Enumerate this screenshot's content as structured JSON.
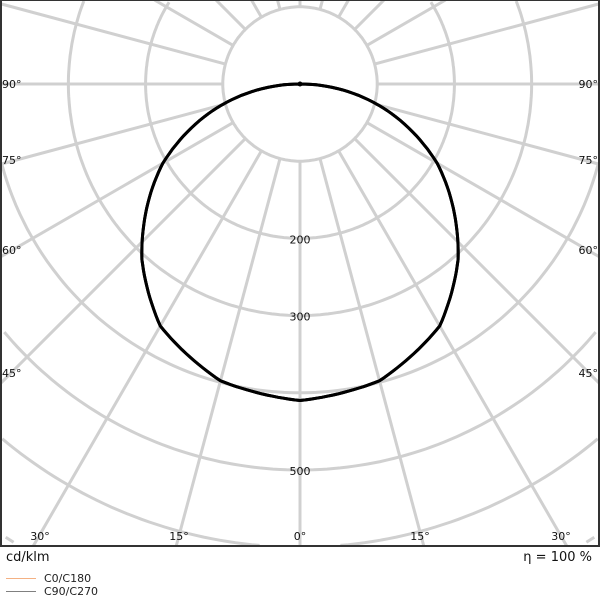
{
  "chart_data": {
    "type": "polar",
    "unit_label": "cd/klm",
    "efficiency_label": "η = 100 %",
    "radial_ticks": [
      100,
      200,
      300,
      400,
      500
    ],
    "radial_tick_labels": [
      "200",
      "300",
      "500"
    ],
    "angle_labels_left": [
      "90°",
      "75°",
      "60°",
      "45°"
    ],
    "angle_labels_bottom": [
      "30°",
      "15°",
      "0°",
      "15°",
      "30°"
    ],
    "angle_labels_right": [
      "90°",
      "75°",
      "60°",
      "45°"
    ],
    "grid": true,
    "angle_step_deg": 15,
    "legend": "bottom-left",
    "series": [
      {
        "name": "C0/C180",
        "color": "#f4b183",
        "angles": [
          0,
          15,
          30,
          42,
          60,
          75,
          90
        ],
        "values": [
          410,
          398,
          362,
          306,
          205,
          105,
          0
        ]
      },
      {
        "name": "C90/C270",
        "color": "#808080",
        "angles": [
          0,
          15,
          30,
          42,
          60,
          75,
          90
        ],
        "values": [
          410,
          398,
          362,
          306,
          205,
          105,
          0
        ]
      }
    ],
    "curve_color": "#000000"
  }
}
